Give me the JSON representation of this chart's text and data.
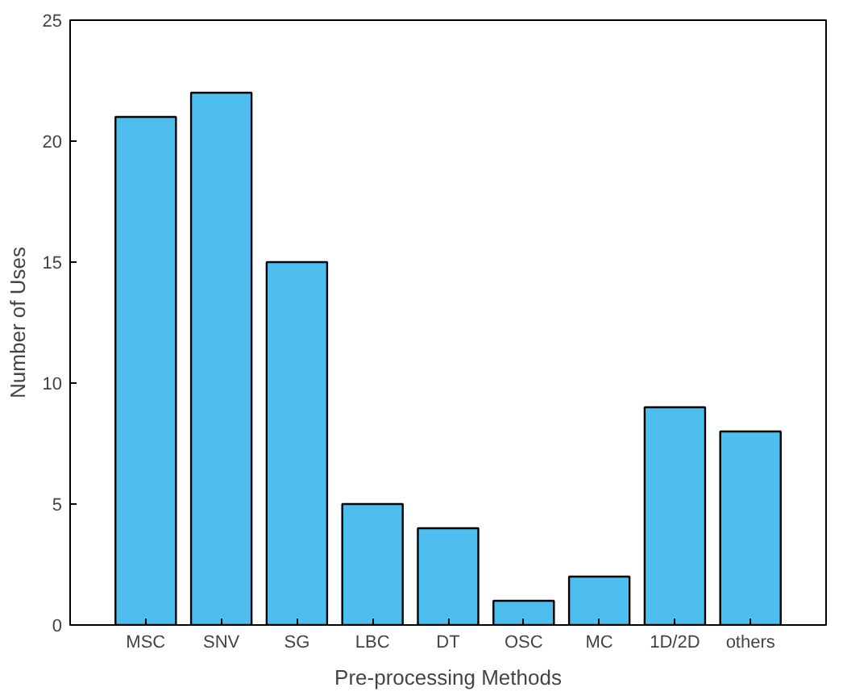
{
  "chart_data": {
    "type": "bar",
    "xlabel": "Pre-processing Methods",
    "ylabel": "Number of Uses",
    "categories": [
      "MSC",
      "SNV",
      "SG",
      "LBC",
      "DT",
      "OSC",
      "MC",
      "1D/2D",
      "others"
    ],
    "values": [
      21,
      22,
      15,
      5,
      4,
      1,
      2,
      9,
      8
    ],
    "color": "#4dbeee",
    "ylim": [
      0,
      25
    ],
    "yticks": [
      0,
      5,
      10,
      15,
      20,
      25
    ],
    "grid": false
  }
}
